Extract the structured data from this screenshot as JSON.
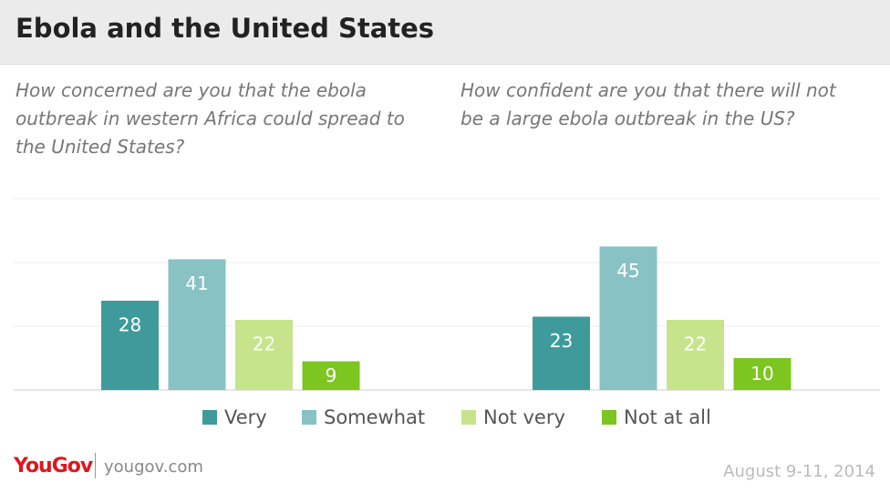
{
  "header": {
    "title": "Ebola and the United States"
  },
  "chart_data": [
    {
      "type": "bar",
      "title": "How concerned are you that the ebola outbreak in western Africa could spread to the United States?",
      "categories": [
        "Very",
        "Somewhat",
        "Not very",
        "Not at all"
      ],
      "values": [
        28,
        41,
        22,
        9
      ],
      "colors": [
        "#3f9b9b",
        "#88c2c4",
        "#c6e48c",
        "#7dc51f"
      ],
      "ylim": [
        0,
        60
      ],
      "yticks": [
        0,
        20,
        40,
        60
      ],
      "grid": true
    },
    {
      "type": "bar",
      "title": "How confident are you that there will not be a large ebola outbreak in the US?",
      "categories": [
        "Very",
        "Somewhat",
        "Not very",
        "Not at all"
      ],
      "values": [
        23,
        45,
        22,
        10
      ],
      "colors": [
        "#3f9b9b",
        "#88c2c4",
        "#c6e48c",
        "#7dc51f"
      ],
      "ylim": [
        0,
        60
      ],
      "yticks": [
        0,
        20,
        40,
        60
      ],
      "grid": true
    }
  ],
  "footer": {
    "brand": "YouGov",
    "site": "yougov.com",
    "date": "August 9-11, 2014"
  }
}
